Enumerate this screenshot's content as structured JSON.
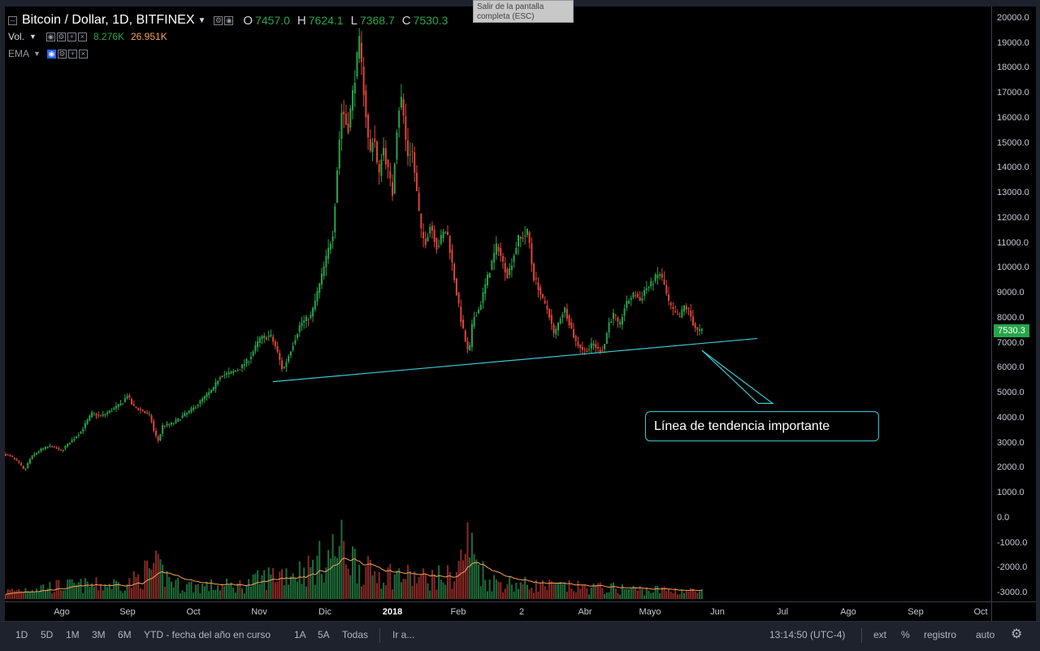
{
  "header": {
    "symbol": "Bitcoin / Dollar, 1D, BITFINEX",
    "ohlc": [
      {
        "label": "O",
        "value": "7457.0"
      },
      {
        "label": "H",
        "value": "7624.1"
      },
      {
        "label": "L",
        "value": "7368.7"
      },
      {
        "label": "C",
        "value": "7530.3"
      }
    ],
    "volume": {
      "label": "Vol.",
      "value1": "8.276K",
      "value2": "26.951K"
    },
    "ema": {
      "label": "EMA"
    }
  },
  "tooltip": "Salir de la pantalla completa (ESC)",
  "annotation": "Línea de tendencia importante",
  "colors": {
    "up": "#26a64b",
    "down": "#e0453a",
    "trendline": "#3ec8d0",
    "ema_line": "#f5a25a"
  },
  "bottom_bar": {
    "ranges": [
      "1D",
      "5D",
      "1M",
      "3M",
      "6M",
      "YTD - fecha del año en curso",
      "1A",
      "5A",
      "Todas"
    ],
    "goto": "Ir a...",
    "time": "13:14:50 (UTC-4)",
    "ext": "ext",
    "percent": "%",
    "log": "registro",
    "auto": "auto",
    "settings_icon": "gear-icon"
  },
  "chart_data": {
    "type": "candlestick",
    "title": "Bitcoin / Dollar, 1D, BITFINEX",
    "x_ticks": [
      "Ago",
      "Sep",
      "Oct",
      "Nov",
      "Dic",
      "2018",
      "Feb",
      "2",
      "Abr",
      "Mayo",
      "Jun",
      "Jul",
      "Ago",
      "Sep",
      "Oct"
    ],
    "y_ticks": [
      -3000,
      -2000,
      -1000,
      0,
      1000,
      2000,
      3000,
      4000,
      5000,
      6000,
      7000,
      8000,
      9000,
      10000,
      11000,
      12000,
      13000,
      14000,
      15000,
      16000,
      17000,
      18000,
      19000,
      20000
    ],
    "last_price": "7530.3",
    "price_path": [
      [
        0,
        2600
      ],
      [
        13,
        2500
      ],
      [
        25,
        2150
      ],
      [
        30,
        1900
      ],
      [
        38,
        2450
      ],
      [
        50,
        2750
      ],
      [
        63,
        2900
      ],
      [
        75,
        2700
      ],
      [
        88,
        3100
      ],
      [
        100,
        3500
      ],
      [
        113,
        4200
      ],
      [
        125,
        4100
      ],
      [
        138,
        4350
      ],
      [
        150,
        4600
      ],
      [
        157,
        4950
      ],
      [
        163,
        4500
      ],
      [
        175,
        4300
      ],
      [
        185,
        4100
      ],
      [
        190,
        3400
      ],
      [
        195,
        3100
      ],
      [
        200,
        3700
      ],
      [
        213,
        3800
      ],
      [
        225,
        4100
      ],
      [
        238,
        4400
      ],
      [
        250,
        4800
      ],
      [
        263,
        5200
      ],
      [
        270,
        5700
      ],
      [
        283,
        5800
      ],
      [
        295,
        6000
      ],
      [
        307,
        6400
      ],
      [
        320,
        7200
      ],
      [
        333,
        7300
      ],
      [
        340,
        6800
      ],
      [
        348,
        5900
      ],
      [
        355,
        6500
      ],
      [
        370,
        7800
      ],
      [
        383,
        8100
      ],
      [
        396,
        9700
      ],
      [
        410,
        11500
      ],
      [
        416,
        14500
      ],
      [
        421,
        16500
      ],
      [
        428,
        15500
      ],
      [
        434,
        17000
      ],
      [
        438,
        18000
      ],
      [
        442,
        19100
      ],
      [
        448,
        17000
      ],
      [
        455,
        14500
      ],
      [
        460,
        15500
      ],
      [
        466,
        13500
      ],
      [
        471,
        15000
      ],
      [
        477,
        14000
      ],
      [
        483,
        13000
      ],
      [
        488,
        15500
      ],
      [
        493,
        17000
      ],
      [
        497,
        16000
      ],
      [
        501,
        14500
      ],
      [
        507,
        14800
      ],
      [
        513,
        13000
      ],
      [
        518,
        11500
      ],
      [
        523,
        11000
      ],
      [
        530,
        11800
      ],
      [
        538,
        10800
      ],
      [
        545,
        11400
      ],
      [
        550,
        11500
      ],
      [
        555,
        10500
      ],
      [
        562,
        9000
      ],
      [
        567,
        8000
      ],
      [
        572,
        7200
      ],
      [
        577,
        6500
      ],
      [
        582,
        8000
      ],
      [
        590,
        8400
      ],
      [
        597,
        9300
      ],
      [
        605,
        10200
      ],
      [
        612,
        11000
      ],
      [
        618,
        10300
      ],
      [
        625,
        9700
      ],
      [
        632,
        10500
      ],
      [
        638,
        11200
      ],
      [
        645,
        11300
      ],
      [
        650,
        11500
      ],
      [
        656,
        9700
      ],
      [
        662,
        9300
      ],
      [
        669,
        8600
      ],
      [
        675,
        8300
      ],
      [
        682,
        7300
      ],
      [
        689,
        8000
      ],
      [
        695,
        8400
      ],
      [
        701,
        7800
      ],
      [
        708,
        7100
      ],
      [
        713,
        6900
      ],
      [
        719,
        6700
      ],
      [
        725,
        6800
      ],
      [
        730,
        7000
      ],
      [
        737,
        6700
      ],
      [
        743,
        6800
      ],
      [
        749,
        7800
      ],
      [
        756,
        8200
      ],
      [
        762,
        7600
      ],
      [
        768,
        8400
      ],
      [
        775,
        8800
      ],
      [
        782,
        9000
      ],
      [
        788,
        8700
      ],
      [
        794,
        9200
      ],
      [
        800,
        9300
      ],
      [
        806,
        9600
      ],
      [
        812,
        9800
      ],
      [
        818,
        9300
      ],
      [
        822,
        8700
      ],
      [
        828,
        8300
      ],
      [
        836,
        8000
      ],
      [
        842,
        8500
      ],
      [
        848,
        8300
      ],
      [
        853,
        7800
      ],
      [
        858,
        7500
      ],
      [
        863,
        7500
      ]
    ],
    "volume_envelope": [
      [
        0,
        280
      ],
      [
        40,
        500
      ],
      [
        80,
        580
      ],
      [
        120,
        610
      ],
      [
        160,
        700
      ],
      [
        190,
        1400
      ],
      [
        220,
        600
      ],
      [
        260,
        560
      ],
      [
        300,
        600
      ],
      [
        340,
        1100
      ],
      [
        380,
        1300
      ],
      [
        420,
        2300
      ],
      [
        450,
        1200
      ],
      [
        480,
        1100
      ],
      [
        520,
        900
      ],
      [
        560,
        1000
      ],
      [
        575,
        2500
      ],
      [
        600,
        800
      ],
      [
        640,
        650
      ],
      [
        680,
        550
      ],
      [
        720,
        500
      ],
      [
        760,
        460
      ],
      [
        800,
        400
      ],
      [
        840,
        380
      ],
      [
        865,
        300
      ]
    ],
    "trendline": {
      "from": {
        "x": 336,
        "y": 5470
      },
      "to": {
        "x": 932,
        "y": 7200
      }
    },
    "callout_pointer": {
      "from": {
        "x": 864,
        "y": 6720
      },
      "to": {
        "x": 945,
        "y": 4600
      }
    }
  }
}
